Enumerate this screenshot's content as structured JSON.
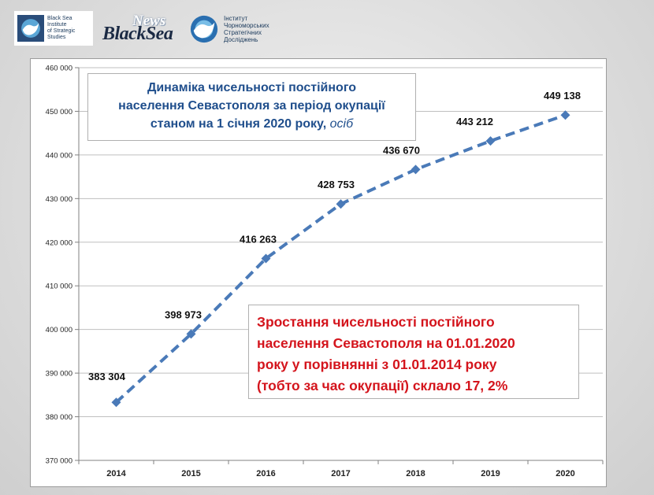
{
  "header": {
    "logo_left_lines": [
      "Black Sea",
      "Institute",
      "of Strategic",
      "Studies"
    ],
    "news_label": "News",
    "blacksea_label": "BlackSea",
    "logo_right_lines": [
      "Інститут",
      "Чорноморських",
      "Стратегічних",
      "Досліджень"
    ]
  },
  "title": {
    "line1": "Динаміка чисельності постійного",
    "line2": "населення Севастополя за період окупації",
    "line3": "станом на 1 січня 2020 року,",
    "unit": "осіб"
  },
  "note": {
    "line1": "Зростання  чисельності постійного",
    "line2": "населення Севастополя на 01.01.2020",
    "line3": "року у порівнянні з 01.01.2014 року",
    "line4_plain": "(тобто за час окупації) склало",
    "line4_value": " 17, 2%"
  },
  "chart_data": {
    "type": "line",
    "categories": [
      "2014",
      "2015",
      "2016",
      "2017",
      "2018",
      "2019",
      "2020"
    ],
    "values": [
      383304,
      398973,
      416263,
      428753,
      436670,
      443212,
      449138
    ],
    "value_labels": [
      "383 304",
      "398 973",
      "416 263",
      "428 753",
      "436 670",
      "443 212",
      "449 138"
    ],
    "ylim": [
      370000,
      460000
    ],
    "yticks": [
      370000,
      380000,
      390000,
      400000,
      410000,
      420000,
      430000,
      440000,
      450000,
      460000
    ],
    "ytick_labels": [
      "370 000",
      "380 000",
      "390 000",
      "400 000",
      "410 000",
      "420 000",
      "430 000",
      "440 000",
      "450 000",
      "460 000"
    ],
    "grid": true,
    "line_style": "dashed",
    "marker": "diamond",
    "series_color": "#4a7ab8",
    "grid_color": "#bfbfbf"
  }
}
